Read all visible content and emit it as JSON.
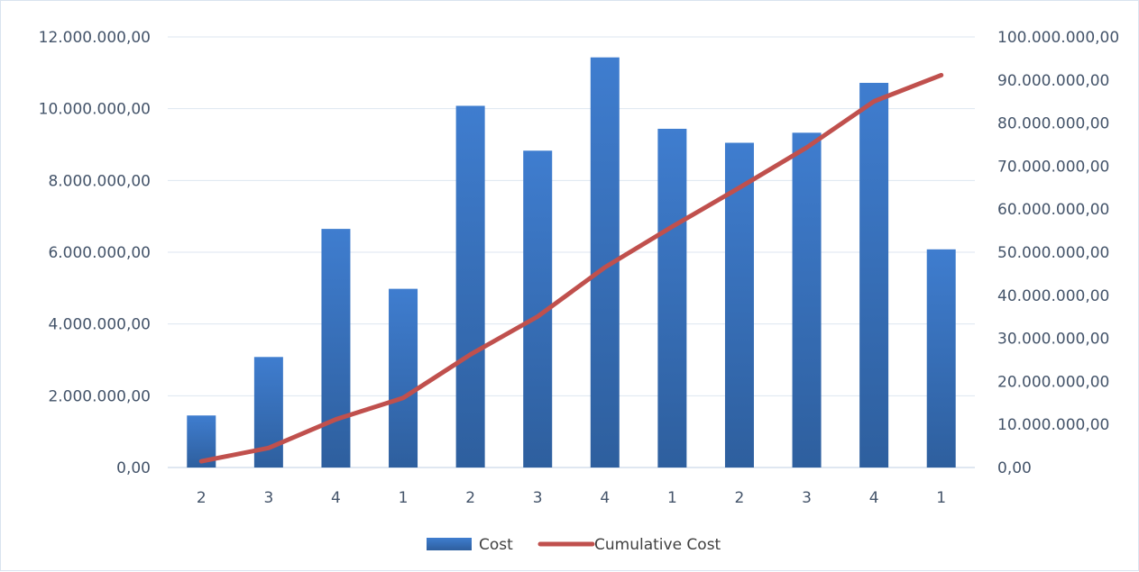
{
  "chart_data": {
    "type": "bar",
    "title": "",
    "categories": [
      "2",
      "3",
      "4",
      "1",
      "2",
      "3",
      "4",
      "1",
      "2",
      "3",
      "4",
      "1"
    ],
    "series": [
      {
        "name": "Cost",
        "type": "bar",
        "axis": "left",
        "color": "#3a73bf",
        "values": [
          1450000,
          3080000,
          6650000,
          4980000,
          10080000,
          8830000,
          11430000,
          9440000,
          9050000,
          9330000,
          10720000,
          6080000
        ]
      },
      {
        "name": "Cumulative Cost",
        "type": "line",
        "axis": "right",
        "color": "#c0504d",
        "values": [
          1450000,
          4530000,
          11180000,
          16160000,
          26240000,
          35070000,
          46500000,
          55940000,
          64990000,
          74320000,
          85040000,
          91120000
        ]
      }
    ],
    "y_left": {
      "min": 0,
      "max": 12000000,
      "ticks": [
        "0,00",
        "2.000.000,00",
        "4.000.000,00",
        "6.000.000,00",
        "8.000.000,00",
        "10.000.000,00",
        "12.000.000,00"
      ]
    },
    "y_right": {
      "min": 0,
      "max": 100000000,
      "ticks": [
        "0,00",
        "10.000.000,00",
        "20.000.000,00",
        "30.000.000,00",
        "40.000.000,00",
        "50.000.000,00",
        "60.000.000,00",
        "70.000.000,00",
        "80.000.000,00",
        "90.000.000,00",
        "100.000.000,00"
      ]
    },
    "grid": true,
    "legend_position": "bottom",
    "xlabel": "",
    "ylabel": ""
  }
}
